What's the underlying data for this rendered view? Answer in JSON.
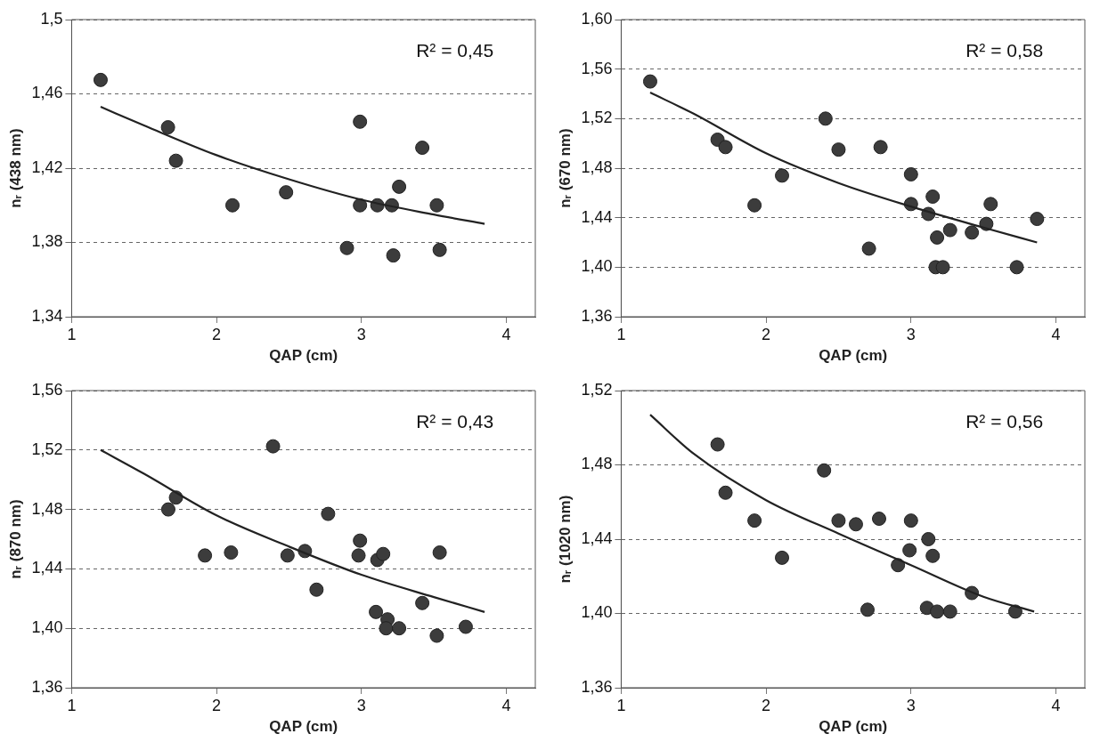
{
  "chart_data": [
    {
      "type": "scatter",
      "xlabel": "QAP (cm)",
      "ylabel": "nᵣ (438 nm)",
      "annotations": [
        "R² = 0,45"
      ],
      "xlim": [
        1,
        4.2
      ],
      "xticks": [
        1,
        2,
        3,
        4
      ],
      "ylim": [
        1.34,
        1.5
      ],
      "yticks": [
        {
          "value": 1.34,
          "label": "1,34"
        },
        {
          "value": 1.38,
          "label": "1,38"
        },
        {
          "value": 1.42,
          "label": "1,42"
        },
        {
          "value": 1.46,
          "label": "1,46"
        },
        {
          "value": 1.5,
          "label": "1,5"
        }
      ],
      "grid": "y",
      "marker": "circle",
      "series": [
        {
          "color": "#3c3c3c",
          "x": [
            1.2,
            1.665,
            1.72,
            2.11,
            2.48,
            2.9,
            2.99,
            2.99,
            3.11,
            3.17,
            3.21,
            3.22,
            3.26,
            3.42,
            3.52,
            3.54
          ],
          "values": [
            1.4675,
            1.442,
            1.424,
            1.4,
            1.407,
            1.377,
            1.445,
            1.4,
            1.4,
            null,
            1.4,
            1.373,
            1.41,
            1.431,
            1.4,
            1.376
          ]
        },
        {
          "type": "line",
          "marker": "none",
          "line_style": "solid",
          "color": "#222222",
          "x": [
            1.2,
            1.5,
            2,
            2.5,
            3,
            3.5,
            3.85
          ],
          "values": [
            1.453,
            1.443,
            1.427,
            1.414,
            1.403,
            1.395,
            1.39
          ]
        }
      ]
    },
    {
      "type": "scatter",
      "xlabel": "QAP (cm)",
      "ylabel": "nᵣ (670 nm)",
      "annotations": [
        "R² = 0,58"
      ],
      "xlim": [
        1,
        4.2
      ],
      "xticks": [
        1,
        2,
        3,
        4
      ],
      "ylim": [
        1.36,
        1.6
      ],
      "yticks": [
        {
          "value": 1.36,
          "label": "1,36"
        },
        {
          "value": 1.4,
          "label": "1,40"
        },
        {
          "value": 1.44,
          "label": "1,44"
        },
        {
          "value": 1.48,
          "label": "1,48"
        },
        {
          "value": 1.52,
          "label": "1,52"
        },
        {
          "value": 1.56,
          "label": "1,56"
        },
        {
          "value": 1.6,
          "label": "1,60"
        }
      ],
      "grid": "y",
      "marker": "circle",
      "series": [
        {
          "color": "#3c3c3c",
          "x": [
            1.2,
            1.665,
            1.72,
            1.92,
            2.11,
            2.41,
            2.5,
            2.79,
            2.71,
            3,
            3,
            3.12,
            3.15,
            3.18,
            3.17,
            3.22,
            3.27,
            3.42,
            3.55,
            3.52,
            3.73,
            3.87
          ],
          "values": [
            1.55,
            1.503,
            1.497,
            1.45,
            1.474,
            1.52,
            1.495,
            1.497,
            1.415,
            1.475,
            1.451,
            1.443,
            1.457,
            1.424,
            1.4,
            1.4,
            1.43,
            1.428,
            1.451,
            1.435,
            1.4,
            1.439
          ]
        },
        {
          "type": "line",
          "marker": "none",
          "line_style": "solid",
          "color": "#222222",
          "x": [
            1.2,
            1.5,
            2,
            2.5,
            3,
            3.5,
            3.87
          ],
          "values": [
            1.541,
            1.524,
            1.492,
            1.468,
            1.449,
            1.432,
            1.42
          ]
        }
      ]
    },
    {
      "type": "scatter",
      "xlabel": "QAP (cm)",
      "ylabel": "nᵣ (870 nm)",
      "annotations": [
        "R² = 0,43"
      ],
      "xlim": [
        1,
        4.2
      ],
      "xticks": [
        1,
        2,
        3,
        4
      ],
      "ylim": [
        1.36,
        1.56
      ],
      "yticks": [
        {
          "value": 1.36,
          "label": "1,36"
        },
        {
          "value": 1.4,
          "label": "1,40"
        },
        {
          "value": 1.44,
          "label": "1,44"
        },
        {
          "value": 1.48,
          "label": "1,48"
        },
        {
          "value": 1.52,
          "label": "1,52"
        },
        {
          "value": 1.56,
          "label": "1,56"
        }
      ],
      "grid": "y",
      "marker": "circle",
      "series": [
        {
          "color": "#3c3c3c",
          "x": [
            1.667,
            1.72,
            1.92,
            2.1,
            2.39,
            2.49,
            2.61,
            2.77,
            2.69,
            2.99,
            2.98,
            3.11,
            3.15,
            3.1,
            3.18,
            3.17,
            3.26,
            3.42,
            3.54,
            3.52,
            3.72
          ],
          "values": [
            1.48,
            1.488,
            1.449,
            1.451,
            1.5225,
            1.449,
            1.452,
            1.477,
            1.426,
            1.459,
            1.449,
            1.446,
            1.45,
            1.411,
            1.406,
            1.4,
            1.4,
            1.417,
            1.451,
            1.395,
            1.401
          ]
        },
        {
          "type": "line",
          "marker": "none",
          "line_style": "solid",
          "color": "#222222",
          "x": [
            1.2,
            1.5,
            2,
            2.5,
            3,
            3.5,
            3.85
          ],
          "values": [
            1.52,
            1.504,
            1.476,
            1.455,
            1.436,
            1.421,
            1.411
          ]
        }
      ]
    },
    {
      "type": "scatter",
      "xlabel": "QAP (cm)",
      "ylabel": "nᵣ (1020 nm)",
      "annotations": [
        "R² = 0,56"
      ],
      "xlim": [
        1,
        4.2
      ],
      "xticks": [
        1,
        2,
        3,
        4
      ],
      "ylim": [
        1.36,
        1.52
      ],
      "yticks": [
        {
          "value": 1.36,
          "label": "1,36"
        },
        {
          "value": 1.4,
          "label": "1,40"
        },
        {
          "value": 1.44,
          "label": "1,44"
        },
        {
          "value": 1.48,
          "label": "1,48"
        },
        {
          "value": 1.52,
          "label": "1,52"
        }
      ],
      "grid": "y",
      "marker": "circle",
      "series": [
        {
          "color": "#3c3c3c",
          "x": [
            1.665,
            1.72,
            1.92,
            2.11,
            2.4,
            2.5,
            2.62,
            2.78,
            2.7,
            3,
            2.99,
            2.91,
            3.12,
            3.15,
            3.11,
            3.18,
            3.27,
            3.42,
            3.72
          ],
          "values": [
            1.491,
            1.465,
            1.45,
            1.43,
            1.477,
            1.45,
            1.448,
            1.451,
            1.402,
            1.45,
            1.434,
            1.426,
            1.44,
            1.431,
            1.403,
            1.401,
            1.401,
            1.411,
            1.401
          ]
        },
        {
          "type": "line",
          "marker": "none",
          "line_style": "solid",
          "color": "#222222",
          "x": [
            1.2,
            1.5,
            2,
            2.5,
            3,
            3.5,
            3.85
          ],
          "values": [
            1.507,
            1.486,
            1.461,
            1.443,
            1.426,
            1.409,
            1.401
          ]
        }
      ]
    }
  ]
}
